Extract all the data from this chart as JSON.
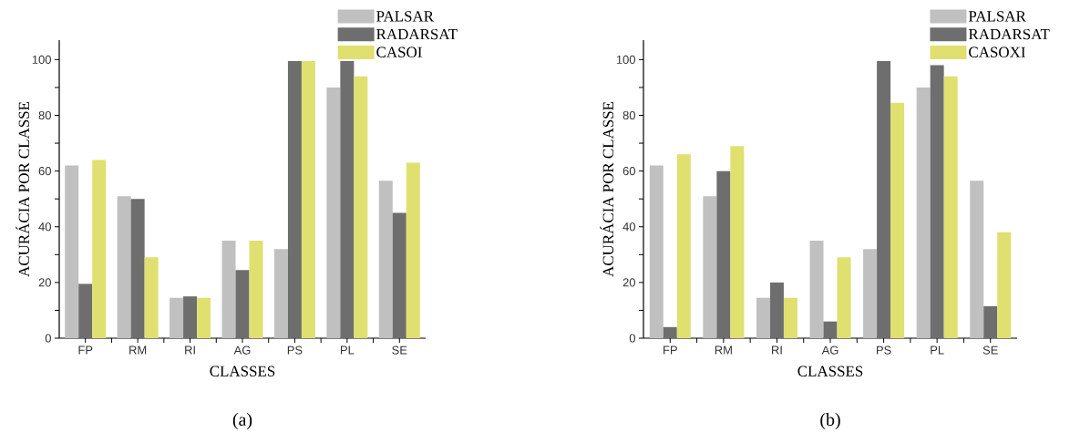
{
  "chart_data": [
    {
      "type": "bar",
      "xlabel": "CLASSES",
      "ylabel": "ACURÁCIA POR CLASSE",
      "categories": [
        "FP",
        "RM",
        "RI",
        "AG",
        "PS",
        "PL",
        "SE"
      ],
      "series": [
        {
          "name": "PALSAR",
          "color": "#c0c0c0",
          "values": [
            62,
            51,
            14.5,
            35,
            32,
            90,
            56.5
          ]
        },
        {
          "name": "RADARSAT",
          "color": "#6e6e6e",
          "values": [
            19.5,
            50,
            15,
            24.5,
            99.5,
            99.5,
            45
          ]
        },
        {
          "name": "CASOI",
          "color": "#e0e070",
          "values": [
            64,
            29,
            14.5,
            35,
            99.5,
            94,
            63
          ]
        }
      ],
      "ylim": [
        0,
        107
      ],
      "yticks": [
        0,
        {
          "value": 10,
          "label": null
        },
        20,
        {
          "value": 30,
          "label": null
        },
        40,
        {
          "value": 50,
          "label": null
        },
        60,
        {
          "value": 70,
          "label": null
        },
        80,
        {
          "value": 90,
          "label": null
        },
        100
      ],
      "legend": "top right",
      "grid": false,
      "annotations": [
        "(a)"
      ]
    },
    {
      "type": "bar",
      "xlabel": "CLASSES",
      "ylabel": "ACURÁCIA POR CLASSE",
      "categories": [
        "FP",
        "RM",
        "RI",
        "AG",
        "PS",
        "PL",
        "SE"
      ],
      "series": [
        {
          "name": "PALSAR",
          "color": "#c0c0c0",
          "values": [
            62,
            51,
            14.5,
            35,
            32,
            90,
            56.5
          ]
        },
        {
          "name": "RADARSAT",
          "color": "#6e6e6e",
          "values": [
            4,
            60,
            20,
            6,
            99.5,
            98,
            11.5
          ]
        },
        {
          "name": "CASOXI",
          "color": "#e0e070",
          "values": [
            66,
            69,
            14.5,
            29,
            84.5,
            94,
            38
          ]
        }
      ],
      "ylim": [
        0,
        107
      ],
      "yticks": [
        0,
        {
          "value": 10,
          "label": null
        },
        20,
        {
          "value": 30,
          "label": null
        },
        40,
        {
          "value": 50,
          "label": null
        },
        60,
        {
          "value": 70,
          "label": null
        },
        80,
        {
          "value": 90,
          "label": null
        },
        100
      ],
      "legend": "top right",
      "grid": false,
      "annotations": [
        "(b)"
      ]
    }
  ]
}
